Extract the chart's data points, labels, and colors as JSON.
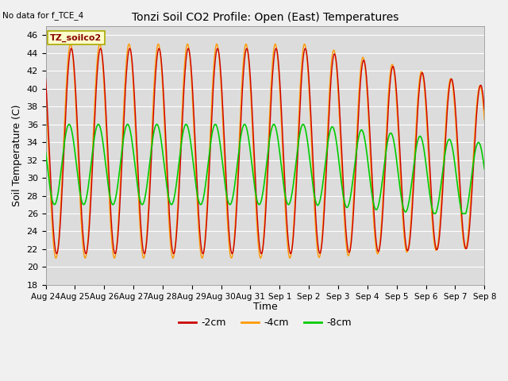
{
  "title": "Tonzi Soil CO2 Profile: Open (East) Temperatures",
  "subtitle": "No data for f_TCE_4",
  "ylabel": "Soil Temperature (C)",
  "xlabel": "Time",
  "legend_label": "TZ_soilco2",
  "ylim": [
    18,
    47
  ],
  "yticks": [
    18,
    20,
    22,
    24,
    26,
    28,
    30,
    32,
    34,
    36,
    38,
    40,
    42,
    44,
    46
  ],
  "series_labels": [
    "-2cm",
    "-4cm",
    "-8cm"
  ],
  "series_colors": [
    "#cc0000",
    "#ff9900",
    "#00cc00"
  ],
  "bg_color": "#dcdcdc",
  "fig_color": "#f0f0f0",
  "xtick_labels": [
    "Aug 24",
    "Aug 25",
    "Aug 26",
    "Aug 27",
    "Aug 28",
    "Aug 29",
    "Aug 30",
    "Aug 31",
    "Sep 1",
    "Sep 2",
    "Sep 3",
    "Sep 4",
    "Sep 5",
    "Sep 6",
    "Sep 7",
    "Sep 8"
  ],
  "num_days": 15,
  "pts_per_day": 96
}
